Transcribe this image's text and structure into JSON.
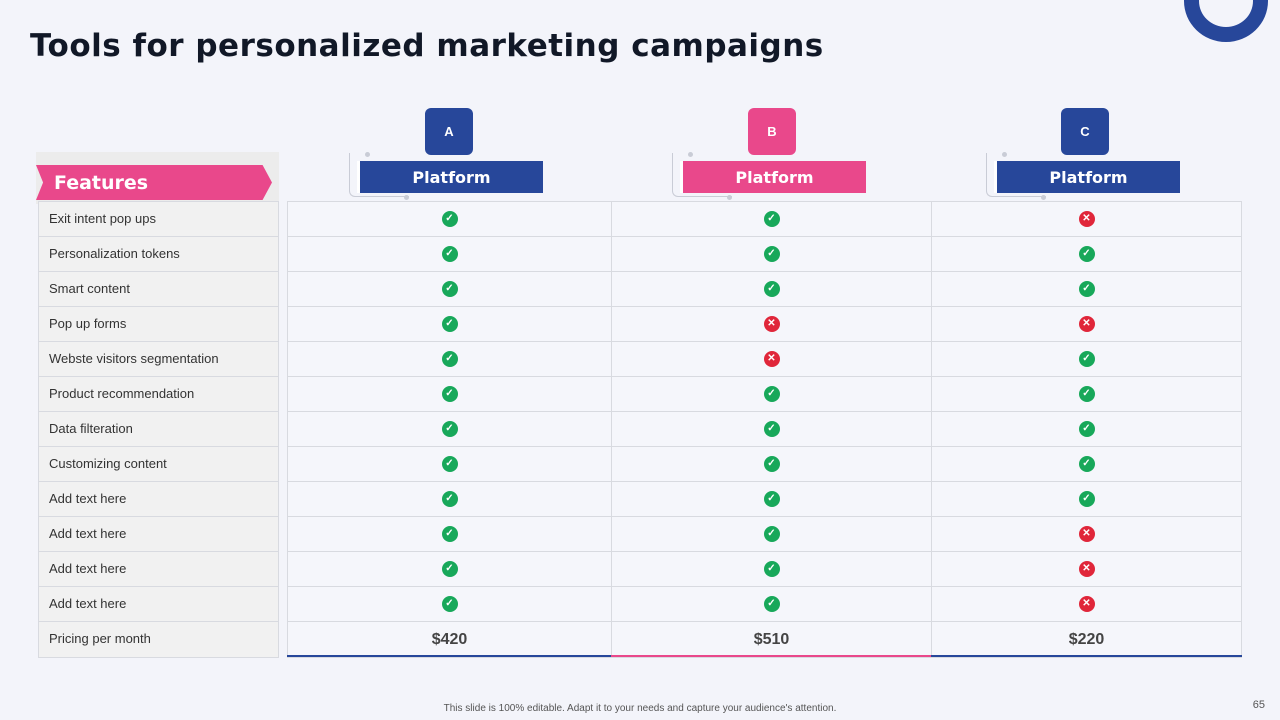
{
  "title": "Tools for personalized marketing campaigns",
  "features_header": "Features",
  "platforms": [
    {
      "letter": "A",
      "label": "Platform",
      "color": "#27479a"
    },
    {
      "letter": "B",
      "label": "Platform",
      "color": "#e9488b"
    },
    {
      "letter": "C",
      "label": "Platform",
      "color": "#27479a"
    }
  ],
  "rows": [
    {
      "feature": "Exit intent pop ups",
      "values": [
        true,
        true,
        false
      ]
    },
    {
      "feature": "Personalization tokens",
      "values": [
        true,
        true,
        true
      ]
    },
    {
      "feature": "Smart content",
      "values": [
        true,
        true,
        true
      ]
    },
    {
      "feature": "Pop up forms",
      "values": [
        true,
        false,
        false
      ]
    },
    {
      "feature": "Webste visitors segmentation",
      "values": [
        true,
        false,
        true
      ]
    },
    {
      "feature": "Product recommendation",
      "values": [
        true,
        true,
        true
      ]
    },
    {
      "feature": "Data filteration",
      "values": [
        true,
        true,
        true
      ]
    },
    {
      "feature": "Customizing content",
      "values": [
        true,
        true,
        true
      ]
    },
    {
      "feature": "Add text here",
      "values": [
        true,
        true,
        true
      ]
    },
    {
      "feature": "Add text here",
      "values": [
        true,
        true,
        false
      ]
    },
    {
      "feature": "Add text here",
      "values": [
        true,
        true,
        false
      ]
    },
    {
      "feature": "Add text here",
      "values": [
        true,
        true,
        false
      ]
    }
  ],
  "pricing": {
    "label": "Pricing per month",
    "values": [
      "$420",
      "$510",
      "$220"
    ]
  },
  "footer": "This slide is 100% editable.  Adapt it to your needs and capture your audience's attention.",
  "page_number": "65",
  "icons": {
    "check": "check-icon",
    "cross": "cross-icon"
  },
  "colors": {
    "check": "#18a85a",
    "cross": "#e0263a",
    "blue": "#27479a",
    "pink": "#e9488b"
  }
}
